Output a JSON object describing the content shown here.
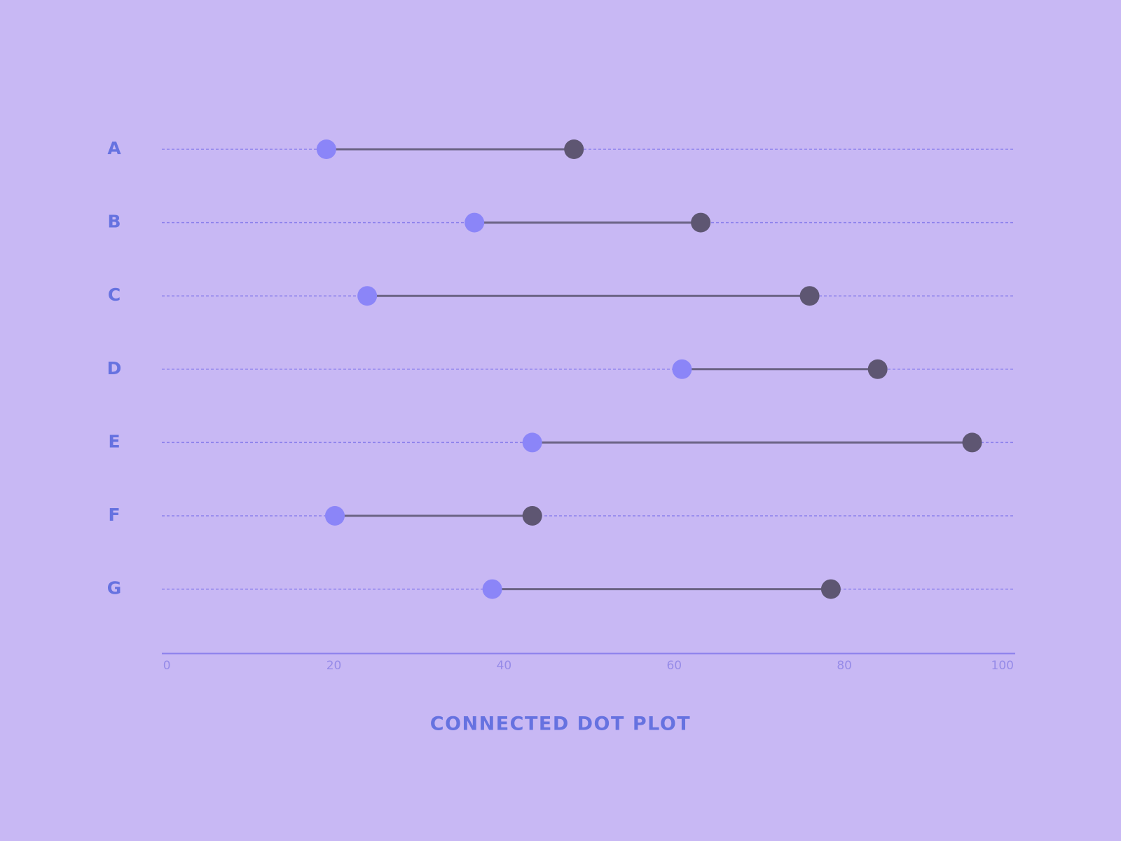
{
  "chart_data": {
    "type": "connected-dot",
    "title": "CONNECTED DOT PLOT",
    "categories": [
      "A",
      "B",
      "C",
      "D",
      "E",
      "F",
      "G"
    ],
    "series": [
      {
        "color": "#8b85f8",
        "values": [
          19.2,
          36.6,
          24,
          61,
          43.4,
          20.2,
          38.7
        ]
      },
      {
        "color": "#5e5672",
        "values": [
          48.3,
          63.2,
          76,
          84,
          95.1,
          43.4,
          78.5
        ]
      }
    ],
    "line_color": "#6b6384",
    "xlim": [
      0,
      100
    ],
    "xticks": [
      0,
      20,
      40,
      60,
      80,
      100
    ]
  }
}
